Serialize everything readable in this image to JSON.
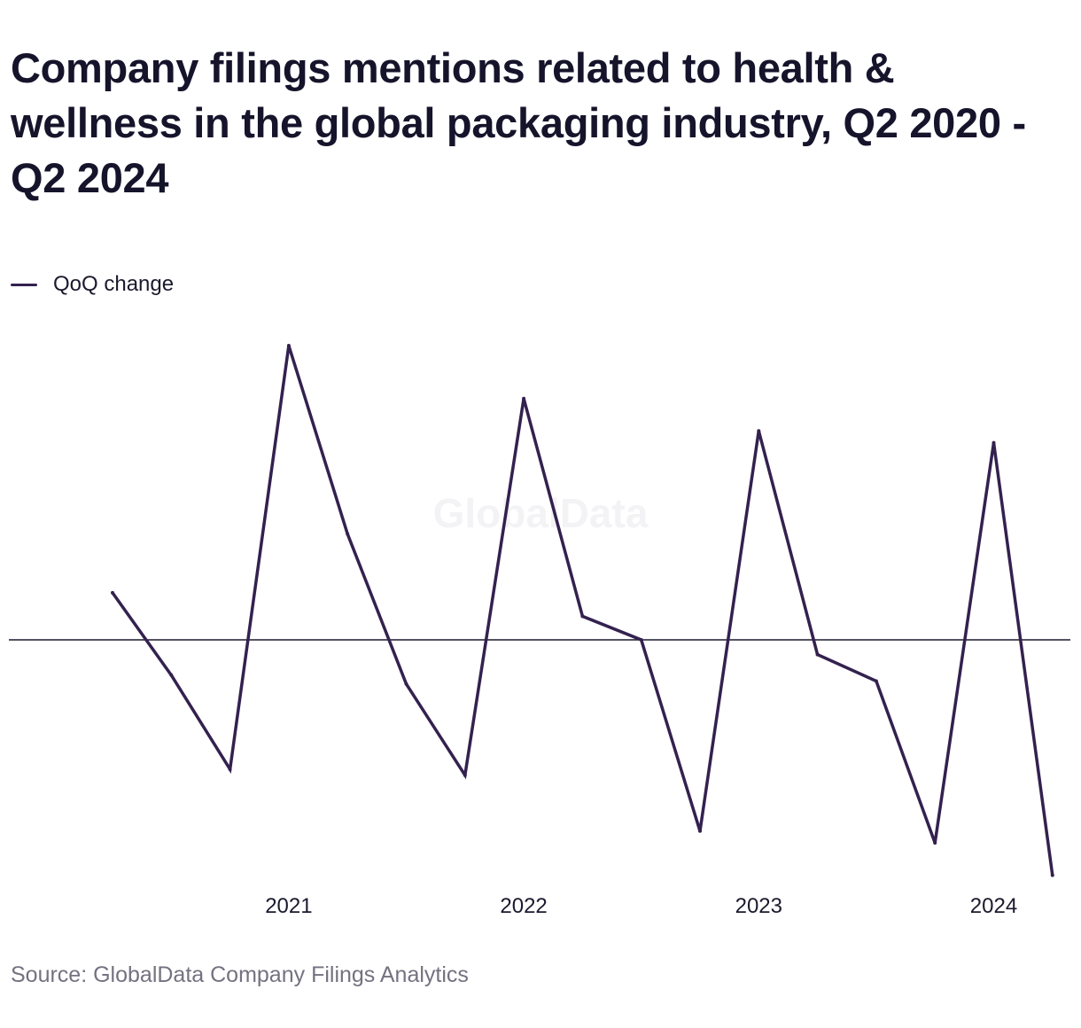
{
  "title": "Company filings mentions related to health & wellness in the global packaging industry, Q2 2020 - Q2 2024",
  "source": "Source: GlobalData Company Filings Analytics",
  "watermark": "GlobalData",
  "colors": {
    "line": "#33214f",
    "zero_line": "#1b1a2e",
    "text": "#1b1a2e",
    "source_text": "#737280"
  },
  "chart_data": {
    "type": "line",
    "x": [
      "Q2 2020",
      "Q3 2020",
      "Q4 2020",
      "Q1 2021",
      "Q2 2021",
      "Q3 2021",
      "Q4 2021",
      "Q1 2022",
      "Q2 2022",
      "Q3 2022",
      "Q4 2022",
      "Q1 2023",
      "Q2 2023",
      "Q3 2023",
      "Q4 2023",
      "Q1 2024",
      "Q2 2024"
    ],
    "series": [
      {
        "name": "QoQ change",
        "values": [
          0.16,
          -0.12,
          -0.44,
          1.0,
          0.36,
          -0.15,
          -0.46,
          0.82,
          0.08,
          0.0,
          -0.65,
          0.71,
          -0.05,
          -0.14,
          -0.69,
          0.67,
          -0.8
        ]
      }
    ],
    "xticks": [
      "2021",
      "2022",
      "2023",
      "2024"
    ],
    "xtick_positions": [
      "Q1 2021",
      "Q1 2022",
      "Q1 2023",
      "Q1 2024"
    ],
    "ylim": [
      -0.85,
      1.05
    ],
    "zero_line": true,
    "grid": false,
    "yaxis_labels_shown": false,
    "legend_position": "top-left",
    "xlabel": "",
    "ylabel": ""
  }
}
